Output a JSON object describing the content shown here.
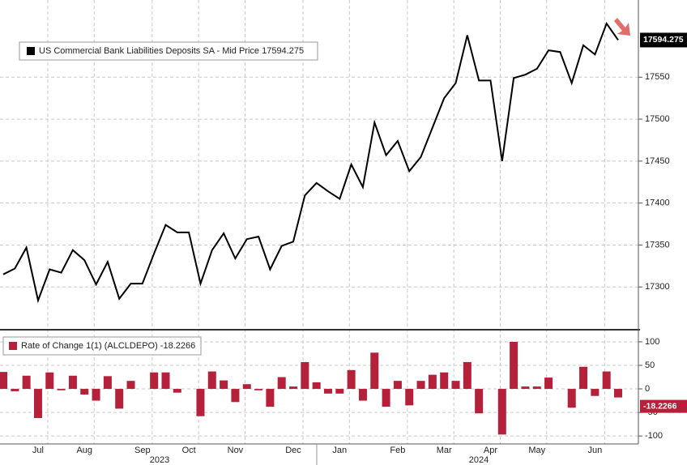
{
  "chart_data": [
    {
      "type": "line",
      "categories": [
        null,
        null,
        null,
        "Jul",
        null,
        null,
        null,
        "Aug",
        null,
        null,
        null,
        null,
        "Sep",
        null,
        null,
        null,
        "Oct",
        null,
        null,
        null,
        "Nov",
        null,
        null,
        null,
        null,
        "Dec",
        null,
        null,
        null,
        "Jan",
        null,
        null,
        null,
        null,
        "Feb",
        null,
        null,
        null,
        "Mar",
        null,
        null,
        null,
        "Apr",
        null,
        null,
        null,
        "May",
        null,
        null,
        null,
        null,
        "Jun",
        null,
        null
      ],
      "year_labels": [
        "2023",
        "2024"
      ],
      "series": [
        {
          "name": "US Commercial Bank Liabilities Deposits SA - Mid Price 17594.275",
          "color": "#000000",
          "values": [
            17315,
            17322,
            17347,
            17284,
            17321,
            17317,
            17344,
            17332,
            17303,
            17330,
            17286,
            17304,
            17304,
            17340,
            17374,
            17365,
            17365,
            17304,
            17344,
            17364,
            17334,
            17357,
            17360,
            17321,
            17349,
            17354,
            17409,
            17424,
            17414,
            17405,
            17446,
            17419,
            17496,
            17457,
            17474,
            17438,
            17455,
            17490,
            17525,
            17543,
            17600,
            17546,
            17546,
            17450,
            17549,
            17553,
            17560,
            17582,
            17580,
            17543,
            17588,
            17577,
            17614,
            17594.275
          ]
        }
      ],
      "ylim": [
        17251,
        17642
      ],
      "yticks": [
        17300,
        17350,
        17400,
        17450,
        17500,
        17550
      ],
      "grid": true
    },
    {
      "type": "bar",
      "series": [
        {
          "name": "Rate of Change 1(1) (ALCLDEPO) -18.2266",
          "color": "#b5203a",
          "values": [
            36,
            -5,
            28,
            -62,
            35,
            -3,
            28,
            -12,
            -25,
            27,
            -42,
            17,
            0,
            35,
            35,
            -8,
            0,
            -58,
            37,
            18,
            -28,
            10,
            -3,
            -38,
            25,
            5,
            57,
            14,
            -10,
            -10,
            40,
            -25,
            77,
            -38,
            17,
            -35,
            17,
            30,
            35,
            17,
            57,
            -52,
            0,
            -97,
            100,
            5,
            5,
            24,
            0,
            -40,
            47,
            -15,
            37,
            -18.2266
          ]
        }
      ],
      "ylim": [
        -117,
        124
      ],
      "yticks": [
        100,
        50,
        0,
        -50,
        -100
      ],
      "grid": true
    }
  ]
}
